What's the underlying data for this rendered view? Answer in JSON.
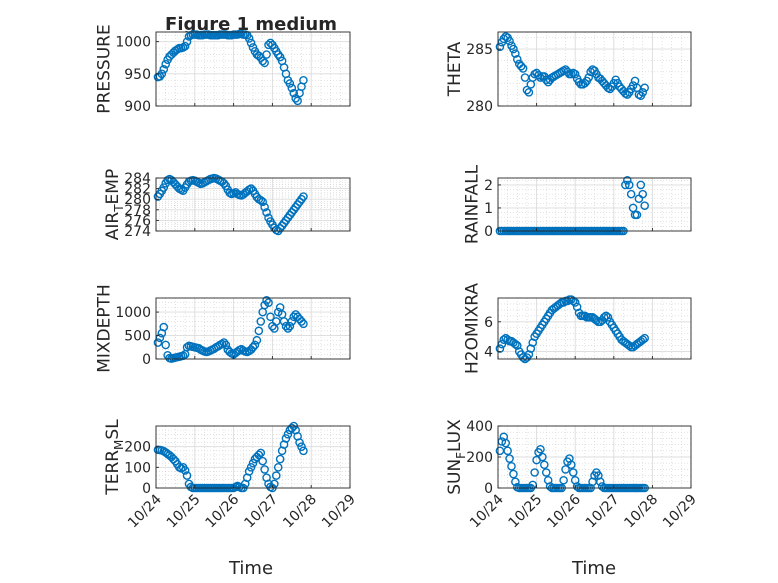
{
  "figure": {
    "title": "Figure 1 medium",
    "xlabel": "Time",
    "xtick_labels": [
      "10/24",
      "10/25",
      "10/26",
      "10/27",
      "10/28",
      "10/29"
    ],
    "marker_color": "#0072BD"
  },
  "chart_data": [
    {
      "type": "scatter",
      "title": "Figure 1 medium",
      "ylabel": "PRESSURE",
      "ylim": [
        900,
        1015
      ],
      "yticks": [
        900,
        950,
        1000
      ],
      "xlim": [
        0,
        5
      ],
      "grid": true,
      "x": [
        0.05,
        0.1,
        0.15,
        0.2,
        0.25,
        0.3,
        0.35,
        0.4,
        0.45,
        0.5,
        0.55,
        0.6,
        0.65,
        0.7,
        0.75,
        0.8,
        0.85,
        0.9,
        0.95,
        1.0,
        1.05,
        1.1,
        1.15,
        1.2,
        1.25,
        1.3,
        1.35,
        1.4,
        1.45,
        1.5,
        1.55,
        1.6,
        1.65,
        1.7,
        1.75,
        1.8,
        1.85,
        1.9,
        1.95,
        2.0,
        2.05,
        2.1,
        2.15,
        2.2,
        2.25,
        2.3,
        2.35,
        2.4,
        2.45,
        2.5,
        2.55,
        2.6,
        2.65,
        2.7,
        2.75,
        2.8,
        2.85,
        2.9,
        2.95,
        3.0,
        3.05,
        3.1,
        3.15,
        3.2,
        3.25,
        3.3,
        3.35,
        3.4,
        3.45,
        3.5,
        3.55,
        3.6,
        3.65,
        3.7,
        3.75,
        3.8
      ],
      "y": [
        945,
        946,
        950,
        957,
        965,
        972,
        977,
        980,
        983,
        986,
        988,
        990,
        990,
        991,
        993,
        1000,
        1008,
        1010,
        1011,
        1011,
        1011,
        1010,
        1010,
        1010,
        1011,
        1011,
        1011,
        1010,
        1010,
        1010,
        1010,
        1010,
        1011,
        1011,
        1011,
        1011,
        1010,
        1010,
        1010,
        1011,
        1011,
        1011,
        1012,
        1012,
        1011,
        1011,
        1010,
        1005,
        998,
        991,
        985,
        980,
        978,
        975,
        970,
        967,
        980,
        995,
        998,
        995,
        990,
        985,
        980,
        976,
        970,
        960,
        950,
        940,
        935,
        928,
        920,
        912,
        908,
        920,
        930,
        940
      ]
    },
    {
      "type": "scatter",
      "ylabel": "THETA",
      "ylim": [
        280,
        286.5
      ],
      "yticks": [
        280,
        285
      ],
      "xlim": [
        0,
        5
      ],
      "grid": true,
      "x": [
        0.05,
        0.1,
        0.15,
        0.2,
        0.25,
        0.3,
        0.35,
        0.4,
        0.45,
        0.5,
        0.55,
        0.6,
        0.65,
        0.7,
        0.75,
        0.8,
        0.85,
        0.9,
        0.95,
        1.0,
        1.05,
        1.1,
        1.15,
        1.2,
        1.25,
        1.3,
        1.35,
        1.4,
        1.45,
        1.5,
        1.55,
        1.6,
        1.65,
        1.7,
        1.75,
        1.8,
        1.85,
        1.9,
        1.95,
        2.0,
        2.05,
        2.1,
        2.15,
        2.2,
        2.25,
        2.3,
        2.35,
        2.4,
        2.45,
        2.5,
        2.55,
        2.6,
        2.65,
        2.7,
        2.75,
        2.8,
        2.85,
        2.9,
        2.95,
        3.0,
        3.05,
        3.1,
        3.15,
        3.2,
        3.25,
        3.3,
        3.35,
        3.4,
        3.45,
        3.5,
        3.55,
        3.6,
        3.65,
        3.7,
        3.75,
        3.8
      ],
      "y": [
        285.2,
        285.6,
        285.9,
        286.1,
        286.0,
        285.7,
        285.3,
        285.0,
        284.6,
        284.1,
        283.7,
        283.5,
        283.3,
        282.5,
        281.4,
        281.2,
        281.9,
        282.5,
        282.8,
        282.9,
        282.7,
        282.5,
        282.6,
        282.6,
        282.3,
        282.1,
        282.3,
        282.5,
        282.6,
        282.7,
        282.8,
        282.9,
        283.0,
        283.1,
        283.2,
        283.0,
        282.8,
        282.8,
        282.9,
        282.8,
        282.4,
        282.1,
        281.9,
        281.9,
        282.0,
        282.2,
        282.5,
        283.0,
        283.2,
        283.1,
        282.8,
        282.5,
        282.4,
        282.2,
        282.0,
        281.8,
        281.6,
        281.5,
        281.7,
        282.0,
        282.3,
        282.0,
        281.7,
        281.5,
        281.3,
        281.1,
        281.0,
        281.2,
        281.5,
        281.8,
        282.2,
        281.6,
        281.0,
        280.9,
        281.2,
        281.6
      ]
    },
    {
      "type": "scatter",
      "ylabel": "AIR_TEMP",
      "ylim": [
        274,
        284
      ],
      "yticks": [
        274,
        276,
        278,
        280,
        282,
        284
      ],
      "xlim": [
        0,
        5
      ],
      "grid": true,
      "x": [
        0.05,
        0.1,
        0.15,
        0.2,
        0.25,
        0.3,
        0.35,
        0.4,
        0.45,
        0.5,
        0.55,
        0.6,
        0.65,
        0.7,
        0.75,
        0.8,
        0.85,
        0.9,
        0.95,
        1.0,
        1.05,
        1.1,
        1.15,
        1.2,
        1.25,
        1.3,
        1.35,
        1.4,
        1.45,
        1.5,
        1.55,
        1.6,
        1.65,
        1.7,
        1.75,
        1.8,
        1.85,
        1.9,
        1.95,
        2.0,
        2.05,
        2.1,
        2.15,
        2.2,
        2.25,
        2.3,
        2.35,
        2.4,
        2.45,
        2.5,
        2.55,
        2.6,
        2.65,
        2.7,
        2.75,
        2.8,
        2.85,
        2.9,
        2.95,
        3.0,
        3.05,
        3.1,
        3.15,
        3.2,
        3.25,
        3.3,
        3.35,
        3.4,
        3.45,
        3.5,
        3.55,
        3.6,
        3.65,
        3.7,
        3.75,
        3.8
      ],
      "y": [
        280.5,
        281.0,
        281.6,
        282.2,
        283.0,
        283.6,
        283.8,
        283.6,
        283.2,
        282.8,
        282.4,
        282.0,
        281.8,
        281.6,
        282.2,
        282.8,
        283.3,
        283.5,
        283.6,
        283.5,
        283.3,
        283.1,
        282.9,
        283.0,
        283.2,
        283.4,
        283.6,
        283.8,
        283.9,
        284.0,
        283.9,
        283.7,
        283.5,
        283.3,
        283.0,
        282.5,
        281.8,
        281.2,
        281.0,
        281.1,
        281.3,
        281.0,
        280.8,
        280.7,
        280.9,
        281.2,
        281.5,
        281.8,
        282.0,
        281.6,
        281.0,
        280.4,
        280.0,
        279.8,
        279.5,
        278.5,
        277.5,
        276.5,
        275.8,
        275.2,
        274.6,
        274.2,
        274.0,
        274.5,
        275.0,
        275.5,
        276.0,
        276.5,
        277.0,
        277.5,
        278.0,
        278.5,
        279.0,
        279.5,
        280.0,
        280.5
      ]
    },
    {
      "type": "scatter",
      "ylabel": "RAINFALL",
      "ylim": [
        0,
        2.3
      ],
      "yticks": [
        0,
        1,
        2
      ],
      "xlim": [
        0,
        5
      ],
      "grid": true,
      "x": [
        0.05,
        0.1,
        0.15,
        0.2,
        0.25,
        0.3,
        0.35,
        0.4,
        0.45,
        0.5,
        0.55,
        0.6,
        0.65,
        0.7,
        0.75,
        0.8,
        0.85,
        0.9,
        0.95,
        1.0,
        1.05,
        1.1,
        1.15,
        1.2,
        1.25,
        1.3,
        1.35,
        1.4,
        1.45,
        1.5,
        1.55,
        1.6,
        1.65,
        1.7,
        1.75,
        1.8,
        1.85,
        1.9,
        1.95,
        2.0,
        2.05,
        2.1,
        2.15,
        2.2,
        2.25,
        2.3,
        2.35,
        2.4,
        2.45,
        2.5,
        2.55,
        2.6,
        2.65,
        2.7,
        2.75,
        2.8,
        2.85,
        2.9,
        2.95,
        3.0,
        3.05,
        3.1,
        3.15,
        3.2,
        3.25,
        3.3,
        3.35,
        3.4,
        3.45,
        3.5,
        3.55,
        3.6,
        3.65,
        3.7,
        3.75,
        3.8
      ],
      "y": [
        0,
        0,
        0,
        0,
        0,
        0,
        0,
        0,
        0,
        0,
        0,
        0,
        0,
        0,
        0,
        0,
        0,
        0,
        0,
        0,
        0,
        0,
        0,
        0,
        0,
        0,
        0,
        0,
        0,
        0,
        0,
        0,
        0,
        0,
        0,
        0,
        0,
        0,
        0,
        0,
        0,
        0,
        0,
        0,
        0,
        0,
        0,
        0,
        0,
        0,
        0,
        0,
        0,
        0,
        0,
        0,
        0,
        0,
        0,
        0,
        0,
        0,
        0,
        0,
        0,
        2.0,
        2.2,
        2.0,
        1.6,
        1.0,
        0.7,
        0.7,
        1.4,
        2.0,
        1.6,
        1.1
      ]
    },
    {
      "type": "scatter",
      "ylabel": "MIXDEPTH",
      "ylim": [
        0,
        1300
      ],
      "yticks": [
        0,
        500,
        1000
      ],
      "xlim": [
        0,
        5
      ],
      "grid": true,
      "x": [
        0.05,
        0.1,
        0.15,
        0.2,
        0.25,
        0.3,
        0.35,
        0.4,
        0.45,
        0.5,
        0.55,
        0.6,
        0.65,
        0.7,
        0.75,
        0.8,
        0.85,
        0.9,
        0.95,
        1.0,
        1.05,
        1.1,
        1.15,
        1.2,
        1.25,
        1.3,
        1.35,
        1.4,
        1.45,
        1.5,
        1.55,
        1.6,
        1.65,
        1.7,
        1.75,
        1.8,
        1.85,
        1.9,
        1.95,
        2.0,
        2.05,
        2.1,
        2.15,
        2.2,
        2.25,
        2.3,
        2.35,
        2.4,
        2.45,
        2.5,
        2.55,
        2.6,
        2.65,
        2.7,
        2.75,
        2.8,
        2.85,
        2.9,
        2.95,
        3.0,
        3.05,
        3.1,
        3.15,
        3.2,
        3.25,
        3.3,
        3.35,
        3.4,
        3.45,
        3.5,
        3.55,
        3.6,
        3.65,
        3.7,
        3.75,
        3.8
      ],
      "y": [
        350,
        450,
        550,
        680,
        300,
        80,
        20,
        10,
        20,
        30,
        40,
        50,
        60,
        70,
        100,
        250,
        280,
        270,
        260,
        250,
        240,
        230,
        200,
        180,
        160,
        150,
        160,
        180,
        200,
        220,
        250,
        270,
        300,
        320,
        350,
        300,
        200,
        150,
        120,
        100,
        130,
        160,
        190,
        210,
        180,
        160,
        150,
        170,
        200,
        250,
        300,
        400,
        600,
        800,
        1000,
        1150,
        1250,
        1200,
        900,
        700,
        650,
        800,
        1000,
        1100,
        950,
        800,
        700,
        650,
        700,
        800,
        900,
        950,
        900,
        850,
        800,
        750
      ]
    },
    {
      "type": "scatter",
      "ylabel": "H2OMIXRA",
      "ylim": [
        3.5,
        7.6
      ],
      "yticks": [
        4,
        6
      ],
      "xlim": [
        0,
        5
      ],
      "grid": true,
      "x": [
        0.05,
        0.1,
        0.15,
        0.2,
        0.25,
        0.3,
        0.35,
        0.4,
        0.45,
        0.5,
        0.55,
        0.6,
        0.65,
        0.7,
        0.75,
        0.8,
        0.85,
        0.9,
        0.95,
        1.0,
        1.05,
        1.1,
        1.15,
        1.2,
        1.25,
        1.3,
        1.35,
        1.4,
        1.45,
        1.5,
        1.55,
        1.6,
        1.65,
        1.7,
        1.75,
        1.8,
        1.85,
        1.9,
        1.95,
        2.0,
        2.05,
        2.1,
        2.15,
        2.2,
        2.25,
        2.3,
        2.35,
        2.4,
        2.45,
        2.5,
        2.55,
        2.6,
        2.65,
        2.7,
        2.75,
        2.8,
        2.85,
        2.9,
        2.95,
        3.0,
        3.05,
        3.1,
        3.15,
        3.2,
        3.25,
        3.3,
        3.35,
        3.4,
        3.45,
        3.5,
        3.55,
        3.6,
        3.65,
        3.7,
        3.75,
        3.8
      ],
      "y": [
        4.2,
        4.5,
        4.8,
        4.9,
        4.8,
        4.7,
        4.7,
        4.6,
        4.5,
        4.4,
        4.0,
        3.8,
        3.6,
        3.5,
        3.6,
        3.8,
        4.2,
        4.6,
        5.0,
        5.2,
        5.4,
        5.6,
        5.8,
        6.0,
        6.2,
        6.4,
        6.6,
        6.8,
        6.9,
        7.0,
        7.1,
        7.2,
        7.3,
        7.3,
        7.4,
        7.4,
        7.5,
        7.5,
        7.4,
        7.3,
        7.0,
        6.6,
        6.4,
        6.4,
        6.4,
        6.3,
        6.3,
        6.3,
        6.3,
        6.2,
        6.1,
        6.0,
        6.0,
        6.1,
        6.3,
        6.4,
        6.3,
        6.0,
        5.8,
        5.6,
        5.4,
        5.2,
        5.0,
        4.8,
        4.7,
        4.6,
        4.5,
        4.4,
        4.3,
        4.3,
        4.4,
        4.5,
        4.6,
        4.7,
        4.8,
        4.9
      ]
    },
    {
      "type": "scatter",
      "ylabel": "TERR_MSL",
      "ylim": [
        0,
        300
      ],
      "yticks": [
        0,
        100,
        200
      ],
      "xlim": [
        0,
        5
      ],
      "grid": true,
      "x": [
        0.05,
        0.1,
        0.15,
        0.2,
        0.25,
        0.3,
        0.35,
        0.4,
        0.45,
        0.5,
        0.55,
        0.6,
        0.65,
        0.7,
        0.75,
        0.8,
        0.85,
        0.9,
        0.95,
        1.0,
        1.05,
        1.1,
        1.15,
        1.2,
        1.25,
        1.3,
        1.35,
        1.4,
        1.45,
        1.5,
        1.55,
        1.6,
        1.65,
        1.7,
        1.75,
        1.8,
        1.85,
        1.9,
        1.95,
        2.0,
        2.05,
        2.1,
        2.15,
        2.2,
        2.25,
        2.3,
        2.35,
        2.4,
        2.45,
        2.5,
        2.55,
        2.6,
        2.65,
        2.7,
        2.75,
        2.8,
        2.85,
        2.9,
        2.95,
        3.0,
        3.05,
        3.1,
        3.15,
        3.2,
        3.25,
        3.3,
        3.35,
        3.4,
        3.45,
        3.5,
        3.55,
        3.6,
        3.65,
        3.7,
        3.75,
        3.8
      ],
      "y": [
        185,
        184,
        182,
        178,
        172,
        165,
        158,
        150,
        140,
        130,
        115,
        100,
        95,
        100,
        85,
        60,
        20,
        5,
        0,
        0,
        0,
        0,
        0,
        0,
        0,
        0,
        0,
        0,
        0,
        0,
        0,
        0,
        0,
        0,
        0,
        0,
        0,
        0,
        0,
        0,
        5,
        10,
        5,
        0,
        0,
        20,
        50,
        80,
        100,
        120,
        140,
        150,
        160,
        170,
        130,
        90,
        50,
        20,
        5,
        0,
        20,
        60,
        100,
        140,
        180,
        210,
        240,
        260,
        280,
        290,
        300,
        280,
        250,
        220,
        200,
        180
      ]
    },
    {
      "type": "scatter",
      "ylabel": "SUN_FLUX",
      "ylim": [
        0,
        400
      ],
      "yticks": [
        0,
        200,
        400
      ],
      "xlim": [
        0,
        5
      ],
      "grid": true,
      "x": [
        0.05,
        0.1,
        0.15,
        0.2,
        0.25,
        0.3,
        0.35,
        0.4,
        0.45,
        0.5,
        0.55,
        0.6,
        0.65,
        0.7,
        0.75,
        0.8,
        0.85,
        0.9,
        0.95,
        1.0,
        1.05,
        1.1,
        1.15,
        1.2,
        1.25,
        1.3,
        1.35,
        1.4,
        1.45,
        1.5,
        1.55,
        1.6,
        1.65,
        1.7,
        1.75,
        1.8,
        1.85,
        1.9,
        1.95,
        2.0,
        2.05,
        2.1,
        2.15,
        2.2,
        2.25,
        2.3,
        2.35,
        2.4,
        2.45,
        2.5,
        2.55,
        2.6,
        2.65,
        2.7,
        2.75,
        2.8,
        2.85,
        2.9,
        2.95,
        3.0,
        3.05,
        3.1,
        3.15,
        3.2,
        3.25,
        3.3,
        3.35,
        3.4,
        3.45,
        3.5,
        3.55,
        3.6,
        3.65,
        3.7,
        3.75,
        3.8
      ],
      "y": [
        240,
        300,
        330,
        290,
        240,
        190,
        140,
        90,
        40,
        5,
        0,
        0,
        0,
        0,
        0,
        0,
        0,
        20,
        100,
        180,
        230,
        250,
        200,
        150,
        100,
        50,
        10,
        0,
        0,
        0,
        0,
        0,
        0,
        50,
        120,
        170,
        190,
        150,
        100,
        50,
        10,
        0,
        0,
        0,
        0,
        0,
        0,
        0,
        40,
        80,
        100,
        80,
        40,
        10,
        0,
        0,
        0,
        0,
        0,
        0,
        0,
        0,
        0,
        0,
        0,
        0,
        0,
        0,
        0,
        0,
        0,
        0,
        0,
        0,
        0,
        0
      ]
    }
  ]
}
